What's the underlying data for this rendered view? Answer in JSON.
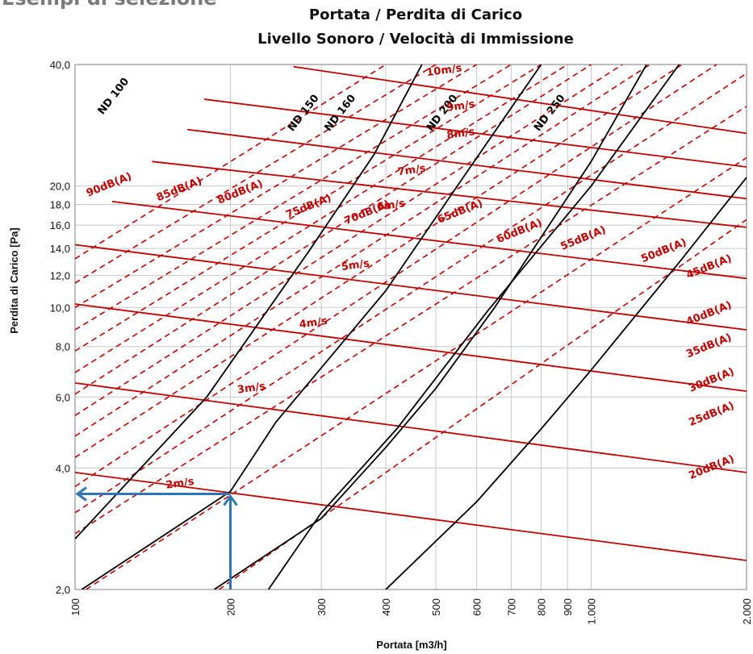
{
  "page_heading": "Esempi di selezione",
  "chart_data": {
    "type": "line",
    "title": "Portata / Perdita di Carico",
    "subtitle": "Livello Sonoro / Velocità di Immissione",
    "xlabel": "Portata [m3/h]",
    "ylabel": "Perdita di Carico [Pa]",
    "x_scale": "log",
    "y_scale": "log",
    "xlim": [
      100,
      2000
    ],
    "ylim": [
      2,
      40
    ],
    "grid": true,
    "x_ticks": [
      {
        "v": 100,
        "label": "100"
      },
      {
        "v": 200,
        "label": "200"
      },
      {
        "v": 300,
        "label": "300"
      },
      {
        "v": 400,
        "label": "400"
      },
      {
        "v": 500,
        "label": "500"
      },
      {
        "v": 600,
        "label": "600"
      },
      {
        "v": 700,
        "label": "700"
      },
      {
        "v": 800,
        "label": "800"
      },
      {
        "v": 900,
        "label": "900"
      },
      {
        "v": 1000,
        "label": "1.000"
      },
      {
        "v": 2000,
        "label": "2.000"
      }
    ],
    "y_ticks": [
      {
        "v": 2,
        "label": "2,0"
      },
      {
        "v": 4,
        "label": "4,0"
      },
      {
        "v": 6,
        "label": "6,0"
      },
      {
        "v": 8,
        "label": "8,0"
      },
      {
        "v": 10,
        "label": "10,0"
      },
      {
        "v": 12,
        "label": "12,0"
      },
      {
        "v": 14,
        "label": "14,0"
      },
      {
        "v": 16,
        "label": "16,0"
      },
      {
        "v": 18,
        "label": "18,0"
      },
      {
        "v": 20,
        "label": "20,0"
      },
      {
        "v": 40,
        "label": "40,0"
      }
    ],
    "duct_series": [
      {
        "name": "ND 100",
        "color": "#000000",
        "points": [
          [
            100,
            2.67
          ],
          [
            180,
            6.0
          ],
          [
            284,
            13.8
          ],
          [
            380,
            24.0
          ],
          [
            470,
            40.0
          ]
        ]
      },
      {
        "name": "ND 150",
        "color": "#000000",
        "points": [
          [
            103,
            2.0
          ],
          [
            200,
            3.5
          ],
          [
            245,
            5.2
          ],
          [
            400,
            11.0
          ],
          [
            565,
            21.0
          ],
          [
            800,
            40.0
          ]
        ]
      },
      {
        "name": "ND 160",
        "color": "#000000",
        "points": [
          [
            186,
            2.0
          ],
          [
            300,
            3.0
          ],
          [
            400,
            4.5
          ],
          [
            500,
            6.3
          ],
          [
            650,
            10.0
          ],
          [
            1000,
            23.0
          ],
          [
            1280,
            40.0
          ]
        ]
      },
      {
        "name": "ND 200",
        "color": "#000000",
        "points": [
          [
            237,
            2.0
          ],
          [
            300,
            3.1
          ],
          [
            420,
            5.0
          ],
          [
            630,
            9.8
          ],
          [
            1000,
            20.0
          ],
          [
            1480,
            40.0
          ]
        ]
      },
      {
        "name": "ND 250",
        "color": "#000000",
        "points": [
          [
            400,
            2.0
          ],
          [
            600,
            3.3
          ],
          [
            800,
            5.0
          ],
          [
            1000,
            7.0
          ],
          [
            1500,
            13.2
          ],
          [
            2000,
            21.0
          ]
        ]
      }
    ],
    "velocity_series": [
      {
        "name": "2m/s",
        "color": "#c00000",
        "points": [
          [
            100,
            3.9
          ],
          [
            2000,
            2.36
          ]
        ]
      },
      {
        "name": "3m/s",
        "color": "#c00000",
        "points": [
          [
            100,
            6.5
          ],
          [
            2000,
            3.9
          ]
        ]
      },
      {
        "name": "4m/s",
        "color": "#c00000",
        "points": [
          [
            100,
            10.2
          ],
          [
            2000,
            6.2
          ]
        ]
      },
      {
        "name": "5m/s",
        "color": "#c00000",
        "points": [
          [
            100,
            14.3
          ],
          [
            2000,
            8.8
          ]
        ]
      },
      {
        "name": "6m/s",
        "color": "#c00000",
        "points": [
          [
            118,
            18.3
          ],
          [
            2000,
            11.8
          ]
        ]
      },
      {
        "name": "7m/s",
        "color": "#c00000",
        "points": [
          [
            141,
            23.0
          ],
          [
            2000,
            15.8
          ]
        ]
      },
      {
        "name": "8m/s",
        "color": "#c00000",
        "points": [
          [
            165,
            27.6
          ],
          [
            2000,
            18.6
          ]
        ]
      },
      {
        "name": "9m/s",
        "color": "#c00000",
        "points": [
          [
            178,
            32.8
          ],
          [
            2000,
            22.3
          ]
        ]
      },
      {
        "name": "10m/s",
        "color": "#c00000",
        "points": [
          [
            265,
            39.5
          ],
          [
            2000,
            27.0
          ]
        ]
      }
    ],
    "noise_series": [
      {
        "name": "90dB(A)",
        "color": "#c00000",
        "points": [
          [
            100,
            13.2
          ],
          [
            400,
            40.0
          ]
        ]
      },
      {
        "name": "85dB(A)",
        "color": "#c00000",
        "points": [
          [
            100,
            11.5
          ],
          [
            500,
            40.0
          ]
        ]
      },
      {
        "name": "80dB(A)",
        "color": "#c00000",
        "points": [
          [
            100,
            10.0
          ],
          [
            600,
            40.0
          ]
        ]
      },
      {
        "name": "75dB(A)",
        "color": "#c00000",
        "points": [
          [
            100,
            8.8
          ],
          [
            700,
            40.0
          ]
        ]
      },
      {
        "name": "70dB(A)",
        "color": "#c00000",
        "points": [
          [
            100,
            7.8
          ],
          [
            800,
            40.0
          ]
        ]
      },
      {
        "name": "65dB(A)",
        "color": "#c00000",
        "points": [
          [
            100,
            6.9
          ],
          [
            900,
            40.0
          ]
        ]
      },
      {
        "name": "60dB(A)",
        "color": "#c00000",
        "points": [
          [
            100,
            6.1
          ],
          [
            1000,
            40.0
          ]
        ]
      },
      {
        "name": "55dB(A)",
        "color": "#c00000",
        "points": [
          [
            100,
            5.4
          ],
          [
            1150,
            40.0
          ]
        ]
      },
      {
        "name": "50dB(A)",
        "color": "#c00000",
        "points": [
          [
            100,
            4.8
          ],
          [
            1300,
            40.0
          ]
        ]
      },
      {
        "name": "45dB(A)",
        "color": "#c00000",
        "points": [
          [
            100,
            4.25
          ],
          [
            1500,
            40.0
          ]
        ]
      },
      {
        "name": "40dB(A)",
        "color": "#c00000",
        "points": [
          [
            100,
            3.6
          ],
          [
            1750,
            40.0
          ]
        ]
      },
      {
        "name": "35dB(A)",
        "color": "#c00000",
        "points": [
          [
            100,
            3.1
          ],
          [
            2000,
            38.0
          ]
        ]
      },
      {
        "name": "30dB(A)",
        "color": "#c00000",
        "points": [
          [
            100,
            2.75
          ],
          [
            2000,
            31.5
          ]
        ]
      },
      {
        "name": "25dB(A)",
        "color": "#c00000",
        "points": [
          [
            105,
            2.0
          ],
          [
            2000,
            23.5
          ]
        ]
      },
      {
        "name": "20dB(A)",
        "color": "#c00000",
        "points": [
          [
            190,
            2.0
          ],
          [
            2000,
            16.5
          ]
        ]
      }
    ],
    "labels": [
      {
        "text": "ND 100",
        "x": 120,
        "y": 33,
        "angle": -52,
        "color": "#000000"
      },
      {
        "text": "ND 150",
        "x": 280,
        "y": 30,
        "angle": -52,
        "color": "#000000"
      },
      {
        "text": "ND 160",
        "x": 330,
        "y": 30,
        "angle": -52,
        "color": "#000000"
      },
      {
        "text": "ND 200",
        "x": 520,
        "y": 30,
        "angle": -52,
        "color": "#000000"
      },
      {
        "text": "ND 250",
        "x": 840,
        "y": 30,
        "angle": -52,
        "color": "#000000"
      },
      {
        "text": "10m/s",
        "x": 520,
        "y": 38,
        "angle": -8,
        "color": "#c00000"
      },
      {
        "text": "9m/s",
        "x": 560,
        "y": 31,
        "angle": -8,
        "color": "#c00000"
      },
      {
        "text": "8m/s",
        "x": 560,
        "y": 26.5,
        "angle": -8,
        "color": "#c00000"
      },
      {
        "text": "7m/s",
        "x": 450,
        "y": 21.5,
        "angle": -8,
        "color": "#c00000"
      },
      {
        "text": "6m/s",
        "x": 410,
        "y": 17.6,
        "angle": -8,
        "color": "#c00000"
      },
      {
        "text": "5m/s",
        "x": 350,
        "y": 12.5,
        "angle": -8,
        "color": "#c00000"
      },
      {
        "text": "4m/s",
        "x": 290,
        "y": 9.0,
        "angle": -8,
        "color": "#c00000"
      },
      {
        "text": "3m/s",
        "x": 220,
        "y": 6.2,
        "angle": -8,
        "color": "#c00000"
      },
      {
        "text": "2m/s",
        "x": 160,
        "y": 3.6,
        "angle": -8,
        "color": "#c00000"
      },
      {
        "text": "90dB(A)",
        "x": 117,
        "y": 19.8,
        "angle": -22,
        "color": "#c00000"
      },
      {
        "text": "85dB(A)",
        "x": 160,
        "y": 19.3,
        "angle": -22,
        "color": "#c00000"
      },
      {
        "text": "80dB(A)",
        "x": 210,
        "y": 19.0,
        "angle": -22,
        "color": "#c00000"
      },
      {
        "text": "75dB(A)",
        "x": 285,
        "y": 17.5,
        "angle": -22,
        "color": "#c00000"
      },
      {
        "text": "70dB(A)",
        "x": 370,
        "y": 16.9,
        "angle": -22,
        "color": "#c00000"
      },
      {
        "text": "65dB(A)",
        "x": 560,
        "y": 17.0,
        "angle": -22,
        "color": "#c00000"
      },
      {
        "text": "60dB(A)",
        "x": 730,
        "y": 15.2,
        "angle": -22,
        "color": "#c00000"
      },
      {
        "text": "55dB(A)",
        "x": 970,
        "y": 14.6,
        "angle": -22,
        "color": "#c00000"
      },
      {
        "text": "50dB(A)",
        "x": 1390,
        "y": 13.6,
        "angle": -22,
        "color": "#c00000"
      },
      {
        "text": "45dB(A)",
        "x": 1700,
        "y": 12.4,
        "angle": -22,
        "color": "#c00000"
      },
      {
        "text": "40dB(A)",
        "x": 1700,
        "y": 9.5,
        "angle": -22,
        "color": "#c00000"
      },
      {
        "text": "35dB(A)",
        "x": 1700,
        "y": 7.9,
        "angle": -22,
        "color": "#c00000"
      },
      {
        "text": "30dB(A)",
        "x": 1720,
        "y": 6.5,
        "angle": -22,
        "color": "#c00000"
      },
      {
        "text": "25dB(A)",
        "x": 1720,
        "y": 5.35,
        "angle": -22,
        "color": "#c00000"
      },
      {
        "text": "20dB(A)",
        "x": 1720,
        "y": 3.95,
        "angle": -22,
        "color": "#c00000"
      }
    ],
    "selection_example": {
      "color": "#2e75b6",
      "x": 200,
      "y": 3.45,
      "note": ""
    }
  }
}
